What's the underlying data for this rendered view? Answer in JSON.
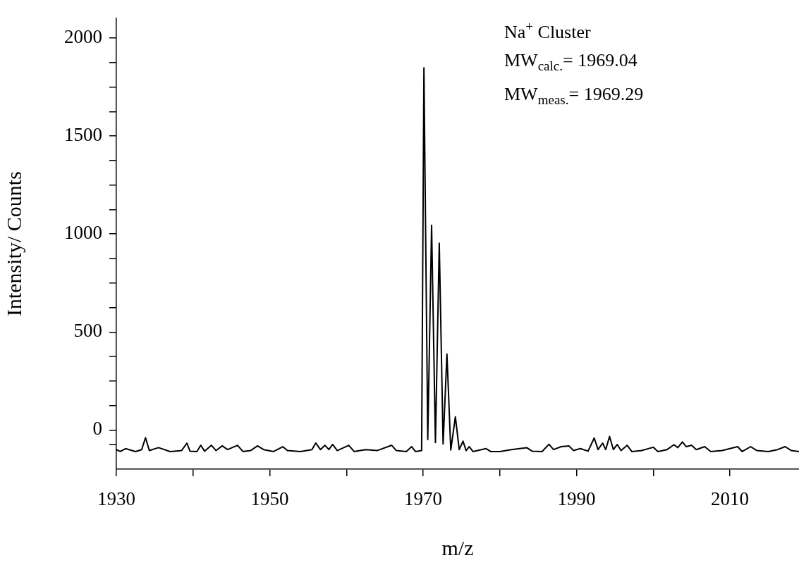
{
  "chart_data": {
    "type": "line",
    "xlabel": "m/z",
    "ylabel": "Intensity/ Counts",
    "annotations": [
      "Na$^{+}$ Cluster",
      "MW$_{calc.}$= 1969.04",
      "MW$_{meas.}$= 1969.29"
    ],
    "xlim": [
      1930,
      2019
    ],
    "ylim": [
      -200,
      2100
    ],
    "xticks": [
      1930,
      {
        "value": 1940,
        "label": null
      },
      1950,
      {
        "value": 1960,
        "label": null
      },
      1970,
      {
        "value": 1980,
        "label": null
      },
      1990,
      {
        "value": 2000,
        "label": null
      },
      2010
    ],
    "yticks": [
      {
        "value": -75,
        "label": null
      },
      0,
      {
        "value": 125,
        "label": null
      },
      {
        "value": 250,
        "label": null
      },
      {
        "value": 375,
        "label": null
      },
      500,
      {
        "value": 625,
        "label": null
      },
      {
        "value": 750,
        "label": null
      },
      {
        "value": 875,
        "label": null
      },
      1000,
      {
        "value": 1125,
        "label": null
      },
      {
        "value": 1250,
        "label": null
      },
      {
        "value": 1375,
        "label": null
      },
      1500,
      {
        "value": 1625,
        "label": null
      },
      {
        "value": 1750,
        "label": null
      },
      {
        "value": 1875,
        "label": null
      },
      2000
    ],
    "grid": false,
    "legend": false,
    "marker": "none",
    "line_style": "solid",
    "series": [
      {
        "color": "#000000",
        "x": [
          1930,
          1930.5,
          1931.2,
          1932.5,
          1933.3,
          1933.8,
          1934.3,
          1935.5,
          1937,
          1938.5,
          1939.2,
          1939.6,
          1940.5,
          1941.0,
          1941.5,
          1942.4,
          1943.0,
          1943.8,
          1944.5,
          1945.8,
          1946.5,
          1947.5,
          1948.4,
          1949.2,
          1950.5,
          1951.7,
          1952.3,
          1954,
          1955.5,
          1956.0,
          1956.6,
          1957.2,
          1957.7,
          1958.2,
          1958.8,
          1960.3,
          1961,
          1962.5,
          1964,
          1965.9,
          1966.5,
          1967.8,
          1968.5,
          1969.0,
          1969.8,
          1970.1,
          1970.6,
          1971.1,
          1971.6,
          1972.1,
          1972.6,
          1973.1,
          1973.6,
          1974.2,
          1974.7,
          1975.2,
          1975.6,
          1976.0,
          1976.5,
          1978.2,
          1978.8,
          1980,
          1981.5,
          1983.5,
          1984.2,
          1985.5,
          1986.4,
          1987.0,
          1988.0,
          1989.0,
          1989.6,
          1990.5,
          1991.5,
          1992.3,
          1992.8,
          1993.4,
          1993.8,
          1994.3,
          1994.8,
          1995.3,
          1995.8,
          1996.6,
          1997.2,
          1998.5,
          2000.0,
          2000.6,
          2001.8,
          2002.7,
          2003.2,
          2003.8,
          2004.3,
          2005.0,
          2005.6,
          2006.7,
          2007.5,
          2009,
          2011.0,
          2011.6,
          2012.7,
          2013.5,
          2015,
          2016.2,
          2017.2,
          2018,
          2019
        ],
        "values": [
          -100,
          -110,
          -95,
          -110,
          -100,
          -39,
          -105,
          -90,
          -110,
          -105,
          -67,
          -108,
          -110,
          -78,
          -108,
          -78,
          -105,
          -81,
          -100,
          -78,
          -110,
          -105,
          -81,
          -100,
          -110,
          -85,
          -105,
          -110,
          -100,
          -66,
          -100,
          -78,
          -100,
          -74,
          -105,
          -78,
          -110,
          -100,
          -105,
          -78,
          -105,
          -110,
          -85,
          -110,
          -105,
          1848,
          -49,
          1045,
          -64,
          953,
          -71,
          388,
          -102,
          67,
          -100,
          -57,
          -105,
          -85,
          -110,
          -95,
          -110,
          -110,
          -100,
          -90,
          -108,
          -110,
          -73,
          -100,
          -85,
          -81,
          -105,
          -95,
          -108,
          -41,
          -100,
          -67,
          -100,
          -33,
          -100,
          -74,
          -105,
          -78,
          -110,
          -105,
          -88,
          -110,
          -100,
          -75,
          -90,
          -61,
          -85,
          -78,
          -100,
          -85,
          -110,
          -105,
          -85,
          -110,
          -85,
          -105,
          -110,
          -100,
          -85,
          -105,
          -110
        ]
      }
    ]
  }
}
